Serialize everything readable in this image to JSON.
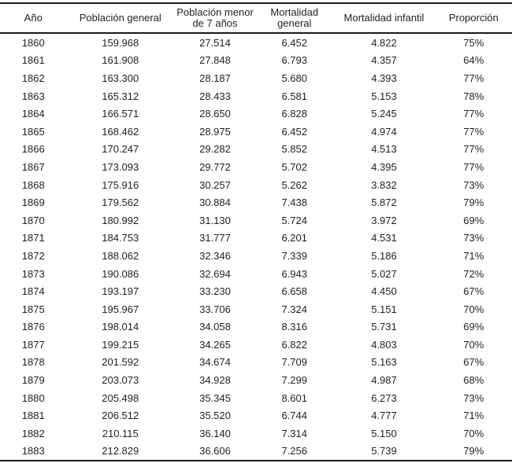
{
  "colors": {
    "text": "#231f20",
    "rule": "#1a1a1a",
    "background": "#ffffff"
  },
  "chart_data": {
    "type": "table",
    "columns": [
      {
        "key": "ano",
        "label_lines": [
          "Año"
        ]
      },
      {
        "key": "poblacion-general",
        "label_lines": [
          "Población general"
        ]
      },
      {
        "key": "poblacion-menor-7",
        "label_lines": [
          "Población menor",
          "de 7 años"
        ]
      },
      {
        "key": "mortalidad-general",
        "label_lines": [
          "Mortalidad",
          "general"
        ]
      },
      {
        "key": "mortalidad-infantil",
        "label_lines": [
          "Mortalidad infantil"
        ]
      },
      {
        "key": "proporcion",
        "label_lines": [
          "Proporción"
        ]
      }
    ],
    "rows": [
      [
        "1860",
        "159.968",
        "27.514",
        "6.452",
        "4.822",
        "75%"
      ],
      [
        "1861",
        "161.908",
        "27.848",
        "6.793",
        "4.357",
        "64%"
      ],
      [
        "1862",
        "163.300",
        "28.187",
        "5.680",
        "4.393",
        "77%"
      ],
      [
        "1863",
        "165.312",
        "28.433",
        "6.581",
        "5.153",
        "78%"
      ],
      [
        "1864",
        "166.571",
        "28.650",
        "6.828",
        "5.245",
        "77%"
      ],
      [
        "1865",
        "168.462",
        "28.975",
        "6.452",
        "4.974",
        "77%"
      ],
      [
        "1866",
        "170.247",
        "29.282",
        "5.852",
        "4.513",
        "77%"
      ],
      [
        "1867",
        "173.093",
        "29.772",
        "5.702",
        "4.395",
        "77%"
      ],
      [
        "1868",
        "175.916",
        "30.257",
        "5.262",
        "3.832",
        "73%"
      ],
      [
        "1869",
        "179.562",
        "30.884",
        "7.438",
        "5.872",
        "79%"
      ],
      [
        "1870",
        "180.992",
        "31.130",
        "5.724",
        "3.972",
        "69%"
      ],
      [
        "1871",
        "184.753",
        "31.777",
        "6.201",
        "4.531",
        "73%"
      ],
      [
        "1872",
        "188.062",
        "32.346",
        "7.339",
        "5.186",
        "71%"
      ],
      [
        "1873",
        "190.086",
        "32.694",
        "6.943",
        "5.027",
        "72%"
      ],
      [
        "1874",
        "193.197",
        "33.230",
        "6.658",
        "4.450",
        "67%"
      ],
      [
        "1875",
        "195.967",
        "33.706",
        "7.324",
        "5.151",
        "70%"
      ],
      [
        "1876",
        "198.014",
        "34.058",
        "8.316",
        "5.731",
        "69%"
      ],
      [
        "1877",
        "199.215",
        "34.265",
        "6.822",
        "4.803",
        "70%"
      ],
      [
        "1878",
        "201.592",
        "34.674",
        "7.709",
        "5.163",
        "67%"
      ],
      [
        "1879",
        "203.073",
        "34.928",
        "7.299",
        "4.987",
        "68%"
      ],
      [
        "1880",
        "205.498",
        "35.345",
        "8.601",
        "6.273",
        "73%"
      ],
      [
        "1881",
        "206.512",
        "35.520",
        "6.744",
        "4.777",
        "71%"
      ],
      [
        "1882",
        "210.115",
        "36.140",
        "7.314",
        "5.150",
        "70%"
      ],
      [
        "1883",
        "212.829",
        "36.606",
        "7.256",
        "5.739",
        "79%"
      ]
    ]
  }
}
